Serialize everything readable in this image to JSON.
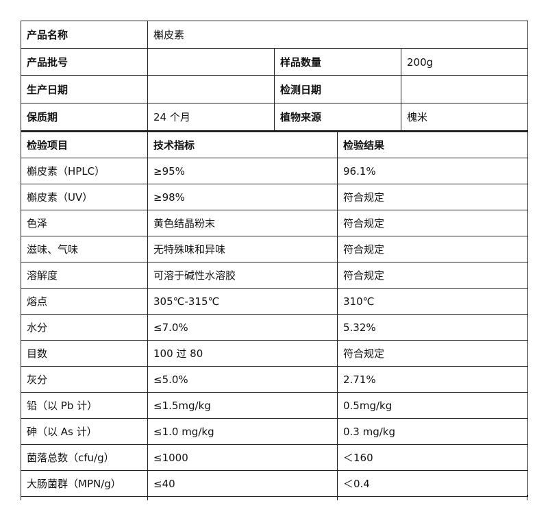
{
  "info": {
    "product_name_label": "产品名称",
    "product_name": "槲皮素",
    "batch_label": "产品批号",
    "batch": "",
    "sample_qty_label": "样品数量",
    "sample_qty": "200g",
    "production_date_label": "生产日期",
    "production_date": "",
    "test_date_label": "检测日期",
    "test_date": "",
    "shelf_life_label": "保质期",
    "shelf_life": "24 个月",
    "plant_source_label": "植物来源",
    "plant_source": "槐米"
  },
  "results": {
    "headers": [
      "检验项目",
      "技术指标",
      "检验结果"
    ],
    "rows": [
      [
        "槲皮素（HPLC）",
        "≥95%",
        "96.1%"
      ],
      [
        "槲皮素（UV）",
        "≥98%",
        "符合规定"
      ],
      [
        "色泽",
        "黄色结晶粉末",
        "符合规定"
      ],
      [
        "滋味、气味",
        "无特殊味和异味",
        "符合规定"
      ],
      [
        "溶解度",
        "可溶于碱性水溶胶",
        "符合规定"
      ],
      [
        "熔点",
        "305℃-315℃",
        "310℃"
      ],
      [
        "水分",
        "≤7.0%",
        "5.32%"
      ],
      [
        "目数",
        "100 过 80",
        "符合规定"
      ],
      [
        "灰分",
        "≤5.0%",
        "2.71%"
      ],
      [
        "铅（以 Pb 计）",
        "≤1.5mg/kg",
        "0.5mg/kg"
      ],
      [
        "砷（以 As 计）",
        "≤1.0 mg/kg",
        "0.3 mg/kg"
      ],
      [
        "菌落总数（cfu/g）",
        "≤1000",
        "＜160"
      ],
      [
        "大肠菌群（MPN/g）",
        "≤40",
        "＜0.4"
      ]
    ]
  }
}
